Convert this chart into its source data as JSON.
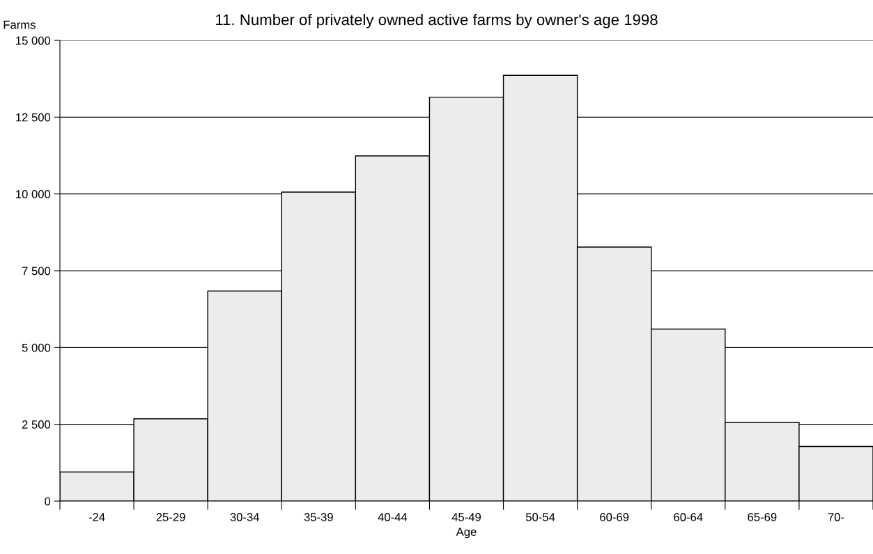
{
  "chart_data": {
    "type": "bar",
    "title": "11. Number of privately owned active farms by owner's age 1998",
    "ylabel": "Farms",
    "xlabel": "Age",
    "categories": [
      "-24",
      "25-29",
      "30-34",
      "35-39",
      "40-44",
      "45-49",
      "50-54",
      "60-69",
      "60-64",
      "65-69",
      "70-"
    ],
    "values": [
      950,
      2680,
      6840,
      10060,
      11240,
      13150,
      13860,
      8270,
      5600,
      2560,
      1780
    ],
    "color": "#ececec",
    "ylim": [
      0,
      15000
    ],
    "yticks": [
      0,
      {
        "value": 2500,
        "label": "2 500"
      },
      {
        "value": 5000,
        "label": "5 000"
      },
      {
        "value": 7500,
        "label": "7 500"
      },
      {
        "value": 10000,
        "label": "10 000"
      },
      {
        "value": 12500,
        "label": "12 500"
      },
      {
        "value": 15000,
        "label": "15 000"
      }
    ],
    "grid": "y",
    "legend": false
  }
}
